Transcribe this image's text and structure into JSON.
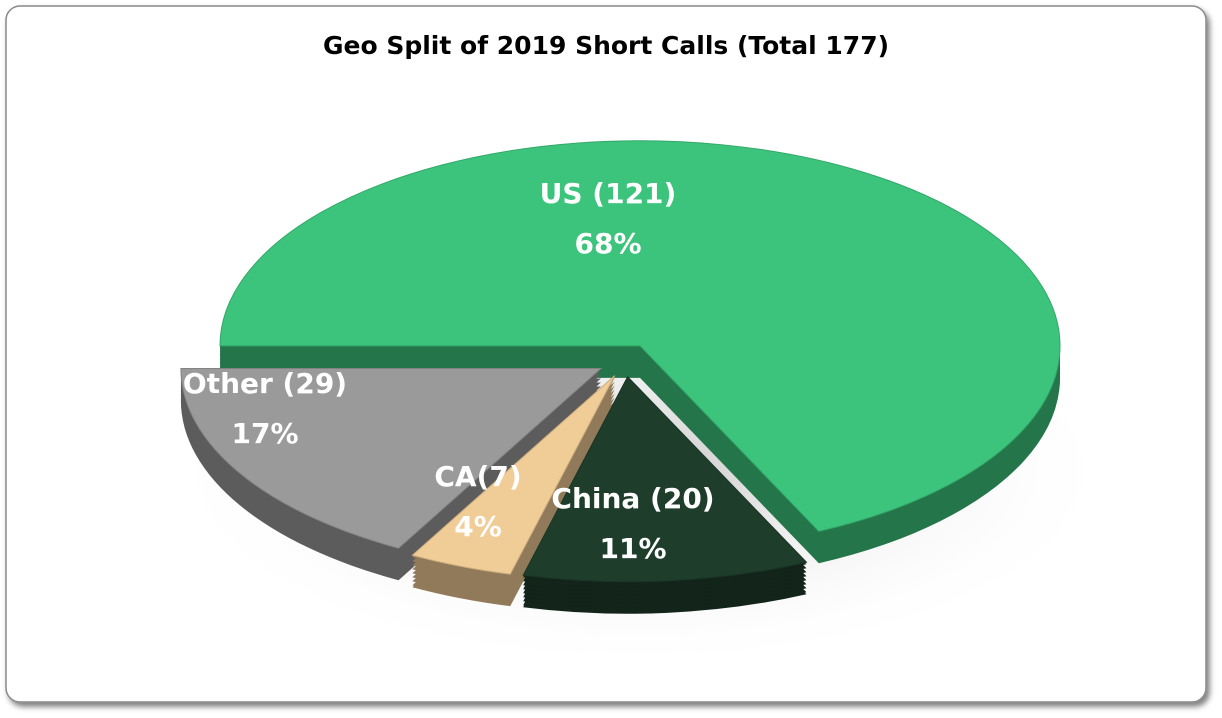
{
  "chart_data": {
    "type": "pie3d",
    "title": "Geo Split of 2019 Short Calls (Total 177)",
    "categories": [
      "US (121)",
      "China (20)",
      "CA(7)",
      "Other (29)"
    ],
    "values": [
      68,
      11,
      4,
      17
    ],
    "value_labels": [
      "68%",
      "11%",
      "4%",
      "17%"
    ],
    "colors": [
      "#3cc47c",
      "#1f3d2b",
      "#f0cc96",
      "#9a9a9a"
    ]
  }
}
